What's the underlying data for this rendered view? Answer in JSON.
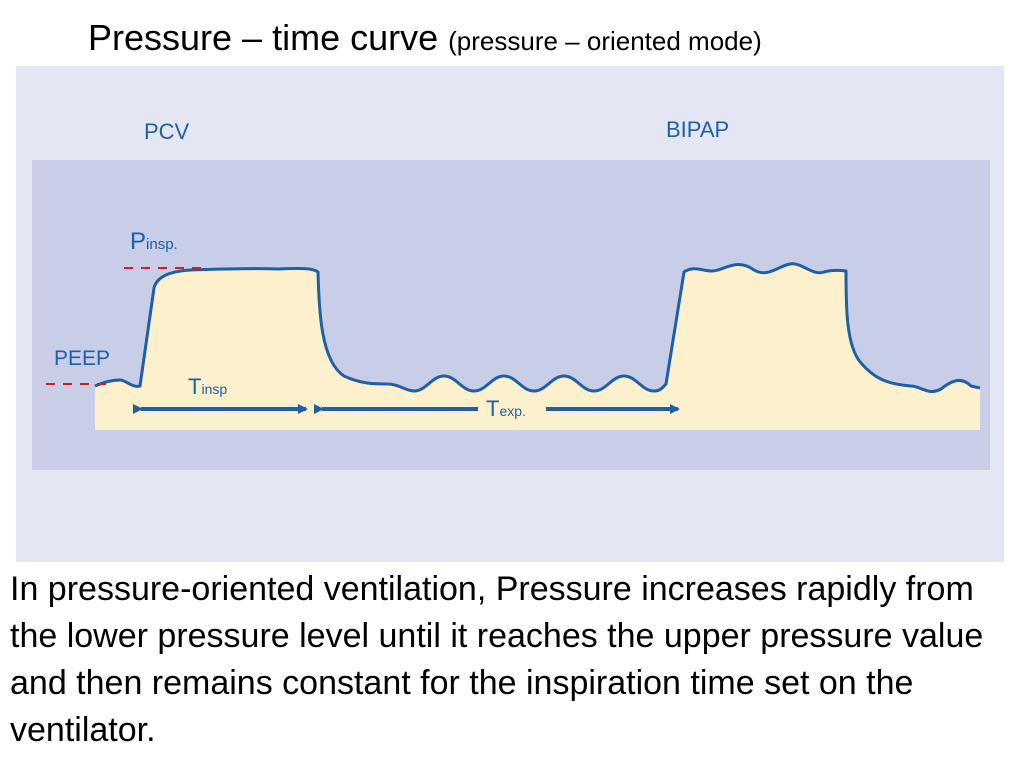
{
  "title": {
    "main": "Pressure – time curve",
    "sub": "(pressure – oriented mode)"
  },
  "diagram": {
    "mode_left": "PCV",
    "mode_right": "BIPAP",
    "p_label": {
      "main": "P",
      "sub": "insp."
    },
    "peep_label": "PEEP",
    "tinsp_label": {
      "main": "T",
      "sub": "insp"
    },
    "texp_label": {
      "main": "T",
      "sub": "exp."
    },
    "colors": {
      "outer_panel": "#e4e6f4",
      "inner_panel": "#c8cde8",
      "fill": "#fcf1cc",
      "curve": "#1f5fa6",
      "dash": "#cc2222"
    }
  },
  "body": {
    "text": "In pressure-oriented ventilation, Pressure increases rapidly from the lower pressure level until it reaches the upper pressure value and then remains constant for the inspiration time set on the ventilator."
  }
}
